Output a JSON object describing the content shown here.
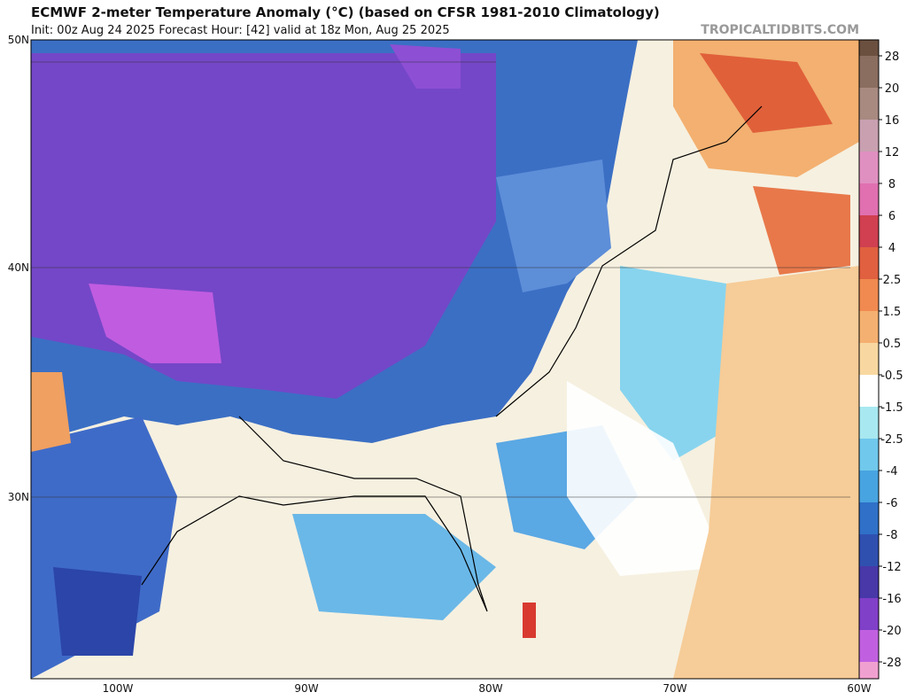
{
  "header": {
    "title": "ECMWF 2-meter Temperature Anomaly (°C) (based on CFSR 1981-2010 Climatology)",
    "subtitle": "Init: 00z Aug 24 2025   Forecast Hour: [42]   valid at 18z Mon, Aug 25 2025",
    "watermark": "TROPICALTIDBITS.COM"
  },
  "map": {
    "lat_labels": [
      "50N",
      "40N",
      "30N"
    ],
    "lon_labels": [
      "100W",
      "90W",
      "80W",
      "70W",
      "60W"
    ]
  },
  "colorbar": {
    "labels": [
      28,
      20,
      16,
      12,
      8,
      6,
      4,
      2.5,
      1.5,
      0.5,
      -0.5,
      -1.5,
      -2.5,
      -4,
      -6,
      -8,
      -12,
      -16,
      -20,
      -28
    ]
  }
}
